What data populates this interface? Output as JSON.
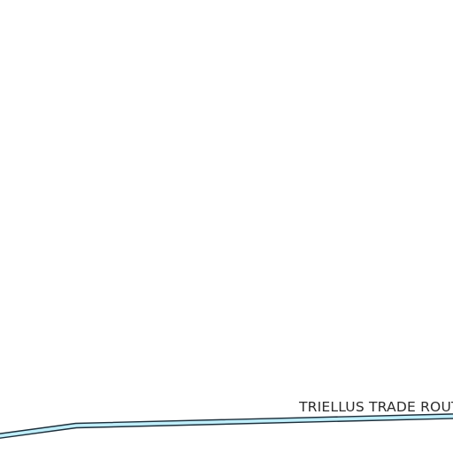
{
  "map": {
    "background_color": "#ffffff",
    "route": {
      "label": "TRIELLUS TRADE ROUTE",
      "fill_color": "#bfeefa",
      "outline_color": "#1c2f3b",
      "label_color": "#2b2b2b"
    }
  }
}
